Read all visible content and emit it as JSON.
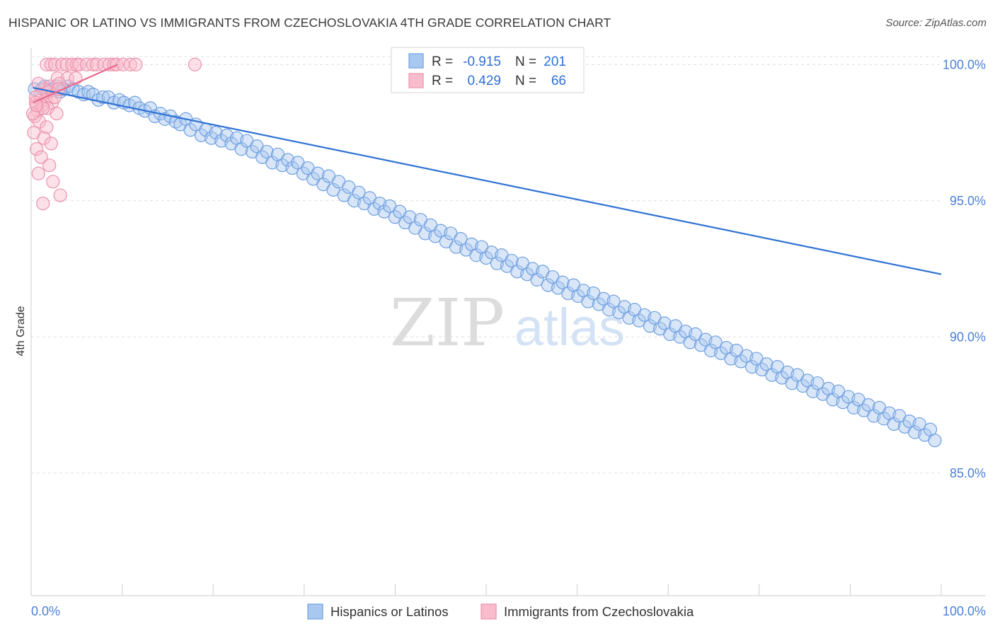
{
  "title": "HISPANIC OR LATINO VS IMMIGRANTS FROM CZECHOSLOVAKIA 4TH GRADE CORRELATION CHART",
  "source": "Source: ZipAtlas.com",
  "watermark": {
    "zip": "ZIP",
    "atlas": "atlas"
  },
  "colors": {
    "blue_fill": "#a9c8f0",
    "blue_stroke": "#6f9fe0",
    "blue_line": "#2f72d4",
    "pink_fill": "#f8bccd",
    "pink_stroke": "#ec90ac",
    "pink_line": "#e8688e",
    "tick_text": "#4a7fd4",
    "grid": "#dddddd"
  },
  "stats": {
    "r_label": "R =",
    "n_label": "N =",
    "rows": [
      {
        "series": "Hispanics or Latinos",
        "r": "-0.915",
        "n": "201"
      },
      {
        "series": "Immigrants from Czechoslovakia",
        "r": "0.429",
        "n": "66"
      }
    ]
  },
  "chart_data": {
    "type": "scatter",
    "title": "HISPANIC OR LATINO VS IMMIGRANTS FROM CZECHOSLOVAKIA 4TH GRADE CORRELATION CHART",
    "xlabel": "",
    "ylabel": "4th Grade",
    "xlim": [
      0,
      100
    ],
    "ylim": [
      80.5,
      100.5
    ],
    "x_tick_labels": [
      "0.0%",
      "100.0%"
    ],
    "y_ticks": [
      100,
      95,
      90,
      85
    ],
    "y_tick_labels": [
      "100.0%",
      "95.0%",
      "90.0%",
      "85.0%"
    ],
    "grid": true,
    "legend": "bottom-center",
    "series": [
      {
        "name": "Hispanics or Latinos",
        "color": "#a9c8f0",
        "trend": {
          "x": [
            0.2,
            100
          ],
          "y": [
            99.15,
            92.3
          ]
        },
        "points": [
          [
            0.4,
            99.1
          ],
          [
            1.2,
            99.1
          ],
          [
            1.5,
            99.2
          ],
          [
            2.3,
            99.1
          ],
          [
            2.8,
            99.2
          ],
          [
            3.2,
            99.0
          ],
          [
            3.6,
            99.1
          ],
          [
            4.1,
            99.2
          ],
          [
            4.6,
            99.1
          ],
          [
            5.2,
            99.0
          ],
          [
            5.8,
            98.9
          ],
          [
            6.3,
            99.0
          ],
          [
            6.8,
            98.9
          ],
          [
            7.4,
            98.7
          ],
          [
            7.9,
            98.8
          ],
          [
            8.5,
            98.8
          ],
          [
            9.1,
            98.6
          ],
          [
            9.7,
            98.7
          ],
          [
            10.2,
            98.6
          ],
          [
            10.8,
            98.5
          ],
          [
            11.4,
            98.6
          ],
          [
            11.9,
            98.4
          ],
          [
            12.5,
            98.3
          ],
          [
            13.1,
            98.4
          ],
          [
            13.6,
            98.1
          ],
          [
            14.2,
            98.2
          ],
          [
            14.7,
            98.0
          ],
          [
            15.3,
            98.1
          ],
          [
            15.9,
            97.9
          ],
          [
            16.4,
            97.8
          ],
          [
            17.0,
            98.0
          ],
          [
            17.5,
            97.6
          ],
          [
            18.1,
            97.8
          ],
          [
            18.7,
            97.4
          ],
          [
            19.2,
            97.6
          ],
          [
            19.8,
            97.3
          ],
          [
            20.3,
            97.5
          ],
          [
            20.9,
            97.2
          ],
          [
            21.5,
            97.4
          ],
          [
            22.0,
            97.1
          ],
          [
            22.6,
            97.3
          ],
          [
            23.1,
            96.9
          ],
          [
            23.7,
            97.2
          ],
          [
            24.3,
            96.8
          ],
          [
            24.8,
            97.0
          ],
          [
            25.4,
            96.6
          ],
          [
            25.9,
            96.8
          ],
          [
            26.5,
            96.4
          ],
          [
            27.1,
            96.7
          ],
          [
            27.6,
            96.3
          ],
          [
            28.2,
            96.5
          ],
          [
            28.7,
            96.2
          ],
          [
            29.3,
            96.4
          ],
          [
            29.9,
            96.0
          ],
          [
            30.4,
            96.2
          ],
          [
            31.0,
            95.8
          ],
          [
            31.5,
            96.0
          ],
          [
            32.1,
            95.6
          ],
          [
            32.7,
            95.9
          ],
          [
            33.2,
            95.4
          ],
          [
            33.8,
            95.7
          ],
          [
            34.4,
            95.2
          ],
          [
            34.9,
            95.5
          ],
          [
            35.5,
            95.0
          ],
          [
            36.0,
            95.3
          ],
          [
            36.6,
            94.9
          ],
          [
            37.2,
            95.1
          ],
          [
            37.7,
            94.7
          ],
          [
            38.3,
            94.9
          ],
          [
            38.8,
            94.6
          ],
          [
            39.4,
            94.8
          ],
          [
            40.0,
            94.4
          ],
          [
            40.5,
            94.6
          ],
          [
            41.1,
            94.2
          ],
          [
            41.6,
            94.4
          ],
          [
            42.2,
            94.0
          ],
          [
            42.8,
            94.3
          ],
          [
            43.3,
            93.8
          ],
          [
            43.9,
            94.1
          ],
          [
            44.4,
            93.7
          ],
          [
            45.0,
            93.9
          ],
          [
            45.6,
            93.5
          ],
          [
            46.1,
            93.8
          ],
          [
            46.7,
            93.3
          ],
          [
            47.2,
            93.6
          ],
          [
            47.8,
            93.2
          ],
          [
            48.4,
            93.4
          ],
          [
            48.9,
            93.0
          ],
          [
            49.5,
            93.3
          ],
          [
            50.0,
            92.9
          ],
          [
            50.6,
            93.1
          ],
          [
            51.2,
            92.7
          ],
          [
            51.7,
            93.0
          ],
          [
            52.3,
            92.6
          ],
          [
            52.8,
            92.8
          ],
          [
            53.4,
            92.4
          ],
          [
            54.0,
            92.7
          ],
          [
            54.5,
            92.3
          ],
          [
            55.1,
            92.5
          ],
          [
            55.6,
            92.1
          ],
          [
            56.2,
            92.4
          ],
          [
            56.8,
            91.9
          ],
          [
            57.3,
            92.2
          ],
          [
            57.9,
            91.8
          ],
          [
            58.4,
            92.0
          ],
          [
            59.0,
            91.6
          ],
          [
            59.6,
            91.9
          ],
          [
            60.1,
            91.5
          ],
          [
            60.7,
            91.7
          ],
          [
            61.2,
            91.3
          ],
          [
            61.8,
            91.6
          ],
          [
            62.4,
            91.2
          ],
          [
            62.9,
            91.4
          ],
          [
            63.5,
            91.0
          ],
          [
            64.0,
            91.3
          ],
          [
            64.6,
            90.9
          ],
          [
            65.2,
            91.1
          ],
          [
            65.7,
            90.7
          ],
          [
            66.3,
            91.0
          ],
          [
            66.8,
            90.6
          ],
          [
            67.4,
            90.8
          ],
          [
            68.0,
            90.4
          ],
          [
            68.5,
            90.7
          ],
          [
            69.1,
            90.3
          ],
          [
            69.6,
            90.5
          ],
          [
            70.2,
            90.1
          ],
          [
            70.8,
            90.4
          ],
          [
            71.3,
            90.0
          ],
          [
            71.9,
            90.2
          ],
          [
            72.4,
            89.8
          ],
          [
            73.0,
            90.1
          ],
          [
            73.6,
            89.7
          ],
          [
            74.1,
            89.9
          ],
          [
            74.7,
            89.5
          ],
          [
            75.2,
            89.8
          ],
          [
            75.8,
            89.4
          ],
          [
            76.4,
            89.6
          ],
          [
            76.9,
            89.2
          ],
          [
            77.5,
            89.5
          ],
          [
            78.0,
            89.1
          ],
          [
            78.6,
            89.3
          ],
          [
            79.2,
            88.9
          ],
          [
            79.7,
            89.2
          ],
          [
            80.3,
            88.8
          ],
          [
            80.8,
            89.0
          ],
          [
            81.4,
            88.6
          ],
          [
            82.0,
            88.9
          ],
          [
            82.5,
            88.5
          ],
          [
            83.1,
            88.7
          ],
          [
            83.6,
            88.3
          ],
          [
            84.2,
            88.6
          ],
          [
            84.8,
            88.2
          ],
          [
            85.3,
            88.4
          ],
          [
            85.9,
            88.0
          ],
          [
            86.4,
            88.3
          ],
          [
            87.0,
            87.9
          ],
          [
            87.6,
            88.1
          ],
          [
            88.1,
            87.7
          ],
          [
            88.7,
            88.0
          ],
          [
            89.2,
            87.6
          ],
          [
            89.8,
            87.8
          ],
          [
            90.4,
            87.4
          ],
          [
            90.9,
            87.7
          ],
          [
            91.5,
            87.3
          ],
          [
            92.0,
            87.5
          ],
          [
            92.6,
            87.1
          ],
          [
            93.2,
            87.4
          ],
          [
            93.7,
            87.0
          ],
          [
            94.3,
            87.2
          ],
          [
            94.8,
            86.8
          ],
          [
            95.4,
            87.1
          ],
          [
            96.0,
            86.7
          ],
          [
            96.5,
            86.9
          ],
          [
            97.1,
            86.5
          ],
          [
            97.6,
            86.8
          ],
          [
            98.2,
            86.4
          ],
          [
            98.8,
            86.6
          ],
          [
            99.3,
            86.2
          ]
        ]
      },
      {
        "name": "Immigrants from Czechoslovakia",
        "color": "#f8bccd",
        "trend": {
          "x": [
            0.2,
            9.5
          ],
          "y": [
            98.6,
            100.0
          ]
        },
        "points": [
          [
            1.7,
            100.0
          ],
          [
            2.2,
            100.0
          ],
          [
            2.6,
            100.0
          ],
          [
            3.4,
            100.0
          ],
          [
            3.9,
            100.0
          ],
          [
            4.5,
            100.0
          ],
          [
            5.0,
            100.0
          ],
          [
            5.3,
            100.0
          ],
          [
            6.1,
            100.0
          ],
          [
            6.8,
            100.0
          ],
          [
            7.2,
            100.0
          ],
          [
            8.0,
            100.0
          ],
          [
            8.6,
            100.0
          ],
          [
            9.1,
            100.0
          ],
          [
            9.4,
            100.0
          ],
          [
            10.1,
            100.0
          ],
          [
            10.9,
            100.0
          ],
          [
            11.5,
            100.0
          ],
          [
            18.0,
            100.0
          ],
          [
            2.9,
            99.5
          ],
          [
            4.0,
            99.5
          ],
          [
            4.9,
            99.5
          ],
          [
            2.1,
            99.2
          ],
          [
            3.1,
            99.3
          ],
          [
            1.5,
            99.1
          ],
          [
            0.8,
            99.3
          ],
          [
            1.9,
            99.0
          ],
          [
            1.0,
            98.9
          ],
          [
            1.6,
            98.7
          ],
          [
            2.3,
            98.6
          ],
          [
            0.5,
            98.8
          ],
          [
            1.2,
            98.5
          ],
          [
            0.7,
            98.3
          ],
          [
            1.8,
            98.4
          ],
          [
            2.8,
            98.2
          ],
          [
            0.4,
            98.1
          ],
          [
            0.9,
            97.9
          ],
          [
            1.7,
            97.7
          ],
          [
            0.3,
            97.5
          ],
          [
            1.4,
            97.3
          ],
          [
            2.2,
            97.1
          ],
          [
            0.6,
            96.9
          ],
          [
            1.1,
            96.6
          ],
          [
            2.0,
            96.3
          ],
          [
            0.8,
            96.0
          ],
          [
            2.4,
            95.7
          ],
          [
            3.2,
            95.2
          ],
          [
            1.3,
            94.9
          ],
          [
            0.5,
            98.6
          ],
          [
            1.3,
            98.4
          ],
          [
            2.6,
            98.8
          ],
          [
            3.0,
            99.1
          ],
          [
            0.2,
            98.2
          ],
          [
            0.6,
            98.5
          ]
        ]
      }
    ]
  },
  "legend": {
    "items": [
      {
        "label": "Hispanics or Latinos",
        "color": "#a9c8f0"
      },
      {
        "label": "Immigrants from Czechoslovakia",
        "color": "#f8bccd"
      }
    ]
  }
}
